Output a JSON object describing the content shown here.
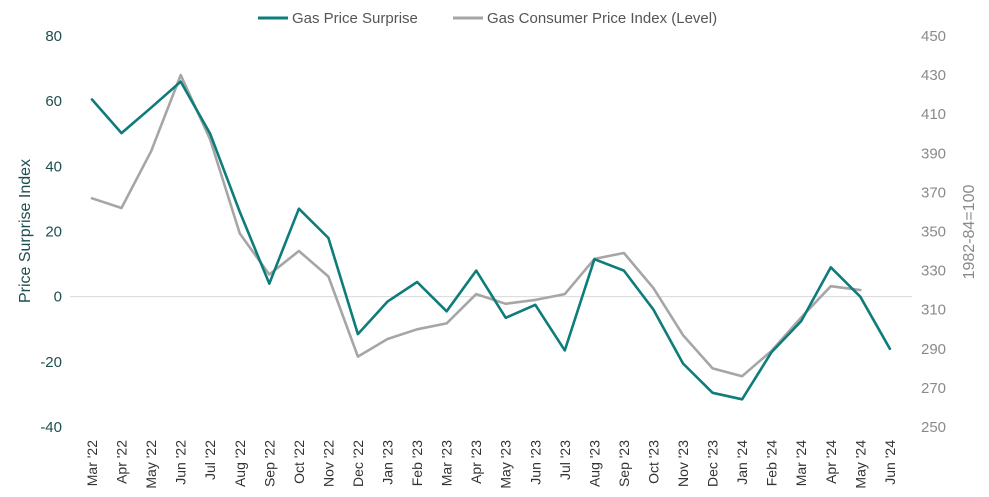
{
  "chart_data": {
    "type": "line",
    "title": "",
    "ylabel": "Price Surprise Index",
    "y2label": "1982-84=100",
    "ylim": [
      -40,
      80
    ],
    "y2lim": [
      250,
      450
    ],
    "yticks": [
      -40,
      -20,
      0,
      20,
      40,
      60,
      80
    ],
    "y2ticks": [
      250,
      270,
      290,
      310,
      330,
      350,
      370,
      390,
      410,
      430,
      450
    ],
    "legend_position": "top",
    "categories": [
      "Mar '22",
      "Apr '22",
      "May '22",
      "Jun '22",
      "Jul '22",
      "Aug '22",
      "Sep '22",
      "Oct '22",
      "Nov '22",
      "Dec '22",
      "Jan '23",
      "Feb '23",
      "Mar '23",
      "Apr '23",
      "May '23",
      "Jun '23",
      "Jul '23",
      "Aug '23",
      "Sep '23",
      "Oct '23",
      "Nov '23",
      "Dec '23",
      "Jan '24",
      "Feb '24",
      "Mar '24",
      "Apr '24",
      "May '24",
      "Jun '24"
    ],
    "series": [
      {
        "name": "Gas Price Surprise",
        "axis": "left",
        "color": "#0e7c7b",
        "values": [
          60.5,
          50.2,
          58,
          66,
          50,
          26,
          4,
          27,
          18,
          -11.5,
          -1.5,
          4.5,
          -4.5,
          8,
          -6.5,
          -2.5,
          -16.5,
          11.5,
          8,
          -4,
          -20.5,
          -29.5,
          -31.5,
          -17,
          -7.5,
          9,
          0,
          -16
        ]
      },
      {
        "name": "Gas Consumer Price Index (Level)",
        "axis": "right",
        "color": "#a6a6a6",
        "values": [
          367,
          362,
          391,
          430,
          397,
          349,
          328,
          340,
          327,
          286,
          295,
          300,
          303,
          318,
          313,
          315,
          318,
          336,
          339,
          321,
          297,
          280,
          276,
          289,
          306,
          322,
          320,
          null
        ]
      }
    ]
  }
}
